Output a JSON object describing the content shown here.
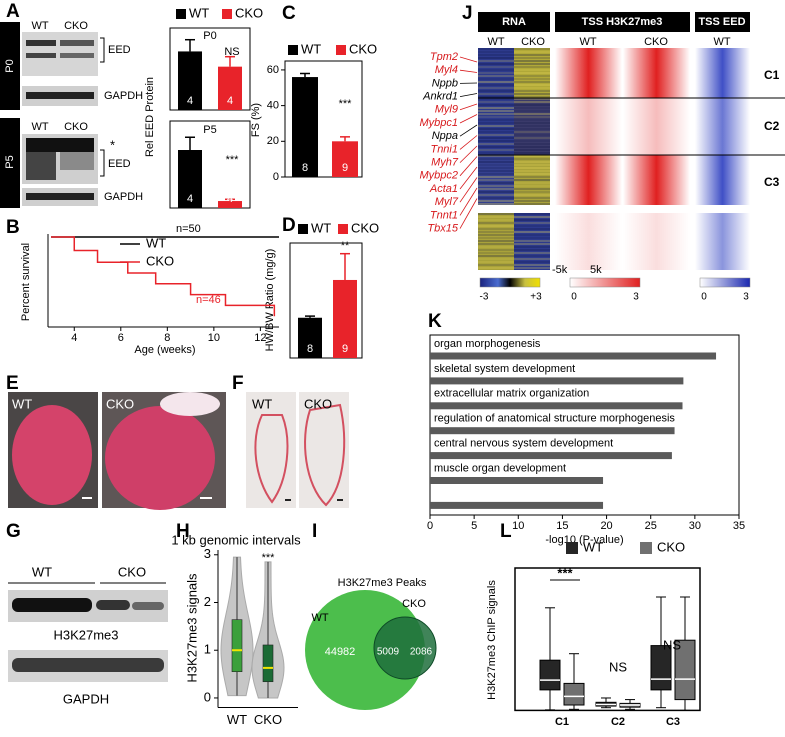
{
  "figure": {
    "panel_a": {
      "label": "A",
      "blots": [
        {
          "stage": "P0",
          "lanes": [
            "WT",
            "CKO"
          ],
          "bands": [
            "EED",
            "GAPDH"
          ]
        },
        {
          "stage": "P5",
          "lanes": [
            "WT",
            "CKO"
          ],
          "marker": "*",
          "bands": [
            "EED",
            "GAPDH"
          ]
        }
      ]
    },
    "panel_e": {
      "label": "E",
      "samples": [
        "WT",
        "CKO"
      ]
    },
    "panel_f": {
      "label": "F",
      "samples": [
        "WT",
        "CKO"
      ]
    },
    "panel_g": {
      "label": "G",
      "lanes": [
        "WT",
        "CKO"
      ],
      "bands": [
        "H3K27me3",
        "GAPDH"
      ]
    },
    "panel_i": {
      "label": "I",
      "title": "H3K27me3 Peaks",
      "sets": [
        {
          "name": "WT",
          "color": "#4cbe4c"
        },
        {
          "name": "CKO",
          "color": "#1e6e3c"
        }
      ],
      "counts": [
        44982,
        5009,
        2086
      ]
    },
    "panel_j": {
      "label": "J",
      "blocks": [
        {
          "title": "RNA",
          "samples": [
            "WT",
            "CKO"
          ]
        },
        {
          "title": "TSS H3K27me3",
          "samples": [
            "WT",
            "CKO"
          ]
        },
        {
          "title": "TSS EED",
          "samples": [
            "WT"
          ]
        }
      ],
      "clusters": [
        "C1",
        "C2",
        "C3"
      ],
      "genes": [
        {
          "name": "Tpm2",
          "color": "#d7191c"
        },
        {
          "name": "Myl4",
          "color": "#d7191c"
        },
        {
          "name": "Nppb",
          "color": "#000000"
        },
        {
          "name": "Ankrd1",
          "color": "#000000"
        },
        {
          "name": "Myl9",
          "color": "#d7191c"
        },
        {
          "name": "Mybpc1",
          "color": "#d7191c"
        },
        {
          "name": "Nppa",
          "color": "#000000"
        },
        {
          "name": "Tnni1",
          "color": "#d7191c"
        },
        {
          "name": "Myh7",
          "color": "#d7191c"
        },
        {
          "name": "Mybpc2",
          "color": "#d7191c"
        },
        {
          "name": "Acta1",
          "color": "#d7191c"
        },
        {
          "name": "Myl7",
          "color": "#d7191c"
        },
        {
          "name": "Tnnt1",
          "color": "#d7191c"
        },
        {
          "name": "Tbx15",
          "color": "#d7191c"
        }
      ],
      "distance_labels": [
        "-5k",
        "5k"
      ],
      "scales": [
        [
          -3,
          {
            "value": 3,
            "label": "+3"
          }
        ],
        [
          0,
          3
        ],
        [
          0,
          3
        ]
      ]
    }
  },
  "chart_data": [
    {
      "type": "bar",
      "title": "P0",
      "ylabel": "Rel EED Protein",
      "categories": [
        "WT",
        "CKO"
      ],
      "colors": [
        "#000000",
        "#e8232a"
      ],
      "values": [
        1.0,
        0.74
      ],
      "errors": [
        0.2,
        0.17
      ],
      "n": [
        4,
        4
      ],
      "annotation": "NS",
      "ylim": [
        0,
        1.4
      ],
      "legend": true
    },
    {
      "type": "bar",
      "title": "P5",
      "colors": [
        "#000000",
        "#e8232a"
      ],
      "values": [
        1.0,
        0.12
      ],
      "errors": [
        0.22,
        0.03
      ],
      "n": [
        4,
        4
      ],
      "annotation": "***",
      "ylim": [
        0,
        1.5
      ]
    },
    {
      "type": "bar",
      "label": "C",
      "ylabel": "FS (%)",
      "categories": [
        "WT",
        "CKO"
      ],
      "colors": [
        "#000000",
        "#e8232a"
      ],
      "values": [
        56,
        20
      ],
      "errors": [
        2,
        2.5
      ],
      "n": [
        8,
        9
      ],
      "annotation": "***",
      "ylim": [
        0,
        65
      ],
      "yticks": [
        0,
        20,
        40,
        60
      ],
      "legend": true
    },
    {
      "type": "bar",
      "label": "D",
      "ylabel": "HW/BW Ratio (mg/g)",
      "categories": [
        "WT",
        "CKO"
      ],
      "colors": [
        "#000000",
        "#e8232a"
      ],
      "values": [
        4.9,
        9.5
      ],
      "errors": [
        0.2,
        3.2
      ],
      "n": [
        8,
        9
      ],
      "annotation": "**",
      "ylim": [
        0,
        14
      ],
      "legend": true
    },
    {
      "type": "line",
      "label": "B",
      "xlabel": "Age (weeks)",
      "ylabel": "Percent survival",
      "xlim": [
        3,
        12.8
      ],
      "xticks": [
        4,
        6,
        8,
        10,
        12
      ],
      "ylim": [
        0,
        100
      ],
      "series": [
        {
          "name": "WT",
          "color": "#000000",
          "x": [
            3,
            12.8
          ],
          "values": [
            100,
            100
          ],
          "n_label": "n=50"
        },
        {
          "name": "CKO",
          "color": "#e8232a",
          "x": [
            3,
            4,
            5,
            6.3,
            7.5,
            9,
            10.5,
            12.6
          ],
          "values": [
            100,
            85,
            72,
            60,
            48,
            36,
            24,
            12
          ],
          "n_label": "n=46"
        }
      ]
    },
    {
      "type": "barh",
      "label": "K",
      "xlabel": "-log10 (P-value)",
      "categories": [
        "organ morphogenesis",
        "skeletal system development",
        "extracellular matrix organization",
        "regulation of anatomical structure morphogenesis",
        "central nervous system development",
        "muscle organ development",
        null
      ],
      "values": [
        32.4,
        28.7,
        28.6,
        27.7,
        27.4,
        19.6,
        19.6
      ],
      "color": "#5a5a5a",
      "xlim": [
        0,
        35
      ],
      "xticks": [
        0,
        5,
        10,
        15,
        20,
        25,
        30,
        35
      ]
    },
    {
      "type": "violin",
      "label": "H",
      "title": "1 kb genomic intervals",
      "ylabel": "H3K27me3 signals",
      "categories": [
        "WT",
        "CKO"
      ],
      "colors": [
        "#3ba03b",
        "#1b6b35"
      ],
      "min": [
        0.05,
        0.0
      ],
      "q1": [
        0.55,
        0.34
      ],
      "median": [
        1.0,
        0.63
      ],
      "q3": [
        1.64,
        1.11
      ],
      "max": [
        2.95,
        2.85
      ],
      "annotation": "***",
      "ylim": [
        -0.2,
        3.1
      ],
      "yticks": [
        0,
        1,
        2,
        3
      ]
    },
    {
      "type": "box",
      "label": "L",
      "ylabel": "H3K27me3  ChIP signals",
      "categories": [
        "C1",
        "C2",
        "C3"
      ],
      "annotations": [
        "***",
        "NS",
        "NS"
      ],
      "ylim": [
        -1,
        23
      ],
      "series": [
        {
          "name": "WT",
          "color": "#262626",
          "min": [
            -0.9,
            -0.5,
            -0.5
          ],
          "q1": [
            2.8,
            -0.2,
            2.8
          ],
          "median": [
            4.6,
            0.1,
            4.8
          ],
          "q3": [
            8.3,
            0.5,
            11
          ],
          "max": [
            18,
            1.3,
            20
          ]
        },
        {
          "name": "CKO",
          "color": "#707070",
          "min": [
            -0.8,
            -0.8,
            -1
          ],
          "q1": [
            0,
            -0.4,
            1
          ],
          "median": [
            1.6,
            0,
            4.8
          ],
          "q3": [
            4,
            0.3,
            12
          ],
          "max": [
            9.5,
            1.0,
            20
          ]
        }
      ]
    }
  ]
}
